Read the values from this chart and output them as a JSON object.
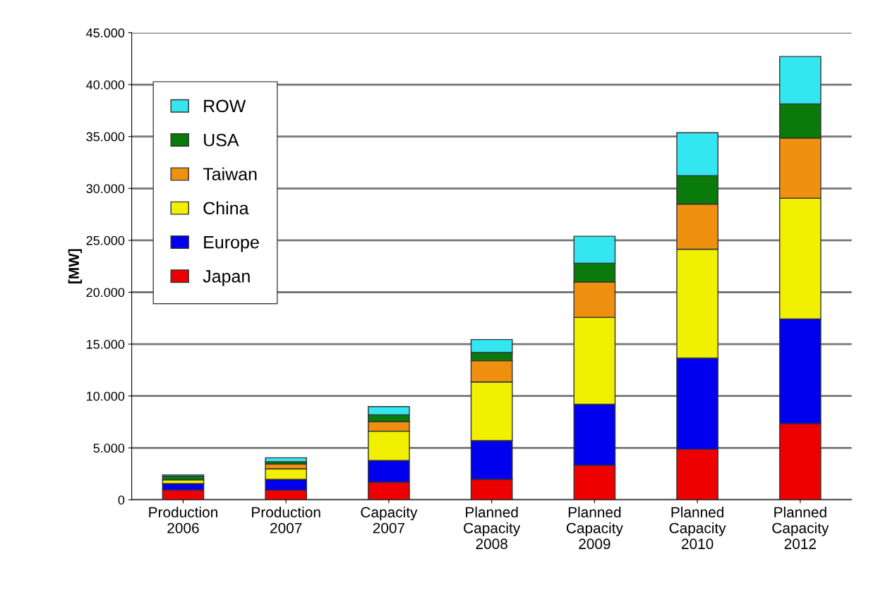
{
  "chart_data": {
    "type": "bar",
    "stacked": true,
    "ylabel": "[MW]",
    "categories": [
      "Production\n2006",
      "Production\n2007",
      "Capacity\n2007",
      "Planned\nCapacity\n2008",
      "Planned\nCapacity\n2009",
      "Planned\nCapacity\n2010",
      "Planned\nCapacity\n2012"
    ],
    "series": [
      {
        "name": "Japan",
        "color": "#ee0000",
        "values": [
          930,
          920,
          1700,
          1970,
          3330,
          4860,
          7340
        ]
      },
      {
        "name": "Europe",
        "color": "#0000ee",
        "values": [
          630,
          1050,
          2080,
          3730,
          5870,
          8800,
          10090
        ]
      },
      {
        "name": "China",
        "color": "#f0f000",
        "values": [
          370,
          1020,
          2830,
          5660,
          8380,
          10480,
          11630
        ]
      },
      {
        "name": "Taiwan",
        "color": "#f09010",
        "values": [
          null,
          450,
          910,
          2040,
          3400,
          4350,
          5800
        ]
      },
      {
        "name": "USA",
        "color": "#0a7a0a",
        "values": [
          350,
          230,
          670,
          790,
          1810,
          2740,
          3280
        ]
      },
      {
        "name": "ROW",
        "color": "#33e6f0",
        "values": [
          120,
          380,
          790,
          1250,
          2600,
          4140,
          4570
        ]
      }
    ],
    "ylim": [
      0,
      45000
    ],
    "yticks": [
      0,
      {
        "value": 5000,
        "label": "5.000"
      },
      {
        "value": 10000,
        "label": "10.000"
      },
      {
        "value": 15000,
        "label": "15.000"
      },
      {
        "value": 20000,
        "label": "20.000"
      },
      {
        "value": 25000,
        "label": "25.000"
      },
      {
        "value": 30000,
        "label": "30.000"
      },
      {
        "value": 35000,
        "label": "35.000"
      },
      {
        "value": 40000,
        "label": "40.000"
      },
      {
        "value": 45000,
        "label": "45.000"
      }
    ],
    "grid": "y",
    "legend": "top left"
  }
}
